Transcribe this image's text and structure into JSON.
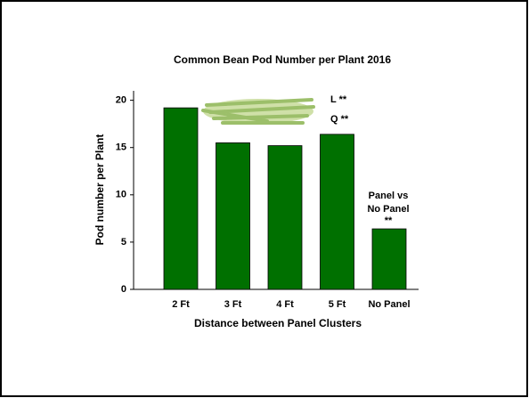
{
  "chart_data": {
    "type": "bar",
    "title": "Common Bean Pod Number per Plant 2016",
    "x_label": "Distance between Panel Clusters",
    "y_label": "Pod number per Plant",
    "categories": [
      "2 Ft",
      "3 Ft",
      "4 Ft",
      "5 Ft",
      "No Panel"
    ],
    "values": [
      19.2,
      15.5,
      15.2,
      16.4,
      6.4
    ],
    "color": "#007000",
    "ylim": [
      0,
      21
    ],
    "yticks": [
      0,
      5,
      10,
      15,
      20
    ],
    "annotations": [
      "L **",
      "Q **",
      "Panel vs",
      "No Panel",
      "**"
    ]
  }
}
